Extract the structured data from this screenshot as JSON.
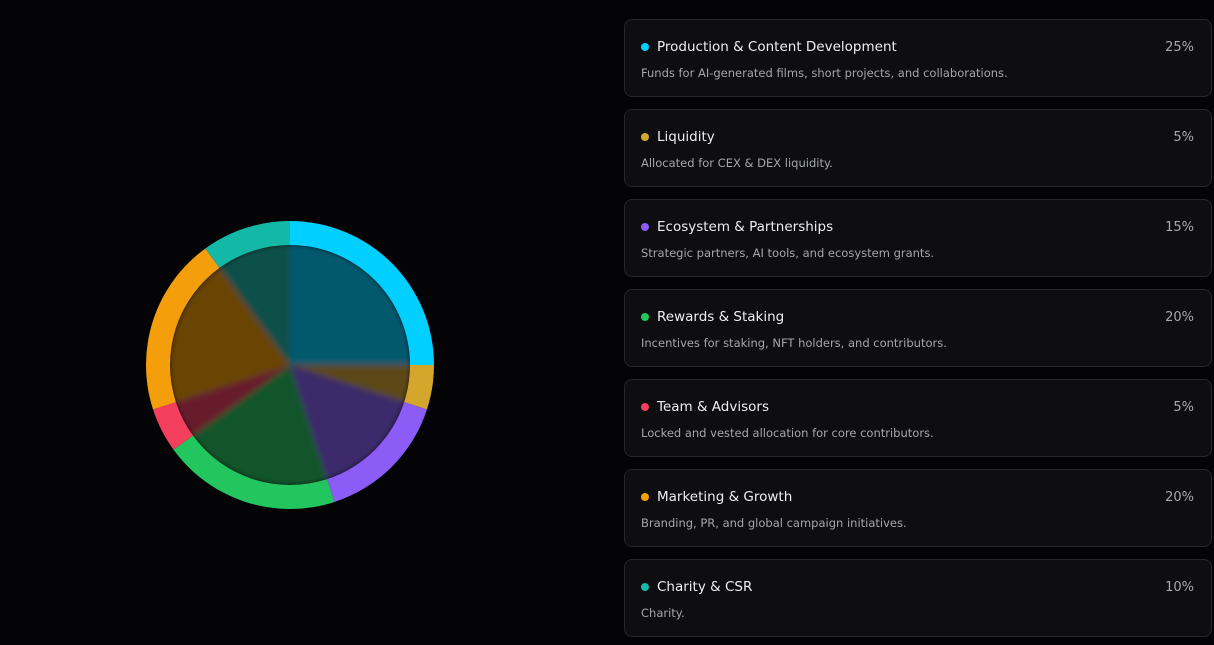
{
  "chart_data": {
    "type": "pie",
    "start_angle_deg": 0,
    "direction": "clockwise",
    "slices": [
      {
        "label": "Production & Content Development",
        "value": 25,
        "color": "#00cfff"
      },
      {
        "label": "Liquidity",
        "value": 5,
        "color": "#d4a72c"
      },
      {
        "label": "Ecosystem & Partnerships",
        "value": 15,
        "color": "#8b5cf6"
      },
      {
        "label": "Rewards & Staking",
        "value": 20,
        "color": "#22c55e"
      },
      {
        "label": "Team & Advisors",
        "value": 5,
        "color": "#f43f5e"
      },
      {
        "label": "Marketing & Growth",
        "value": 20,
        "color": "#f59e0b"
      },
      {
        "label": "Charity & CSR",
        "value": 10,
        "color": "#14b8a6"
      }
    ]
  },
  "allocations": [
    {
      "title": "Production & Content Development",
      "percent": "25%",
      "description": "Funds for AI-generated films, short projects, and collaborations.",
      "color": "#00cfff"
    },
    {
      "title": "Liquidity",
      "percent": "5%",
      "description": "Allocated for CEX & DEX liquidity.",
      "color": "#d4a72c"
    },
    {
      "title": "Ecosystem & Partnerships",
      "percent": "15%",
      "description": "Strategic partners, AI tools, and ecosystem grants.",
      "color": "#8b5cf6"
    },
    {
      "title": "Rewards & Staking",
      "percent": "20%",
      "description": "Incentives for staking, NFT holders, and contributors.",
      "color": "#22c55e"
    },
    {
      "title": "Team & Advisors",
      "percent": "5%",
      "description": "Locked and vested allocation for core contributors.",
      "color": "#f43f5e"
    },
    {
      "title": "Marketing & Growth",
      "percent": "20%",
      "description": "Branding, PR, and global campaign initiatives.",
      "color": "#f59e0b"
    },
    {
      "title": "Charity & CSR",
      "percent": "10%",
      "description": "Charity.",
      "color": "#14b8a6"
    }
  ]
}
